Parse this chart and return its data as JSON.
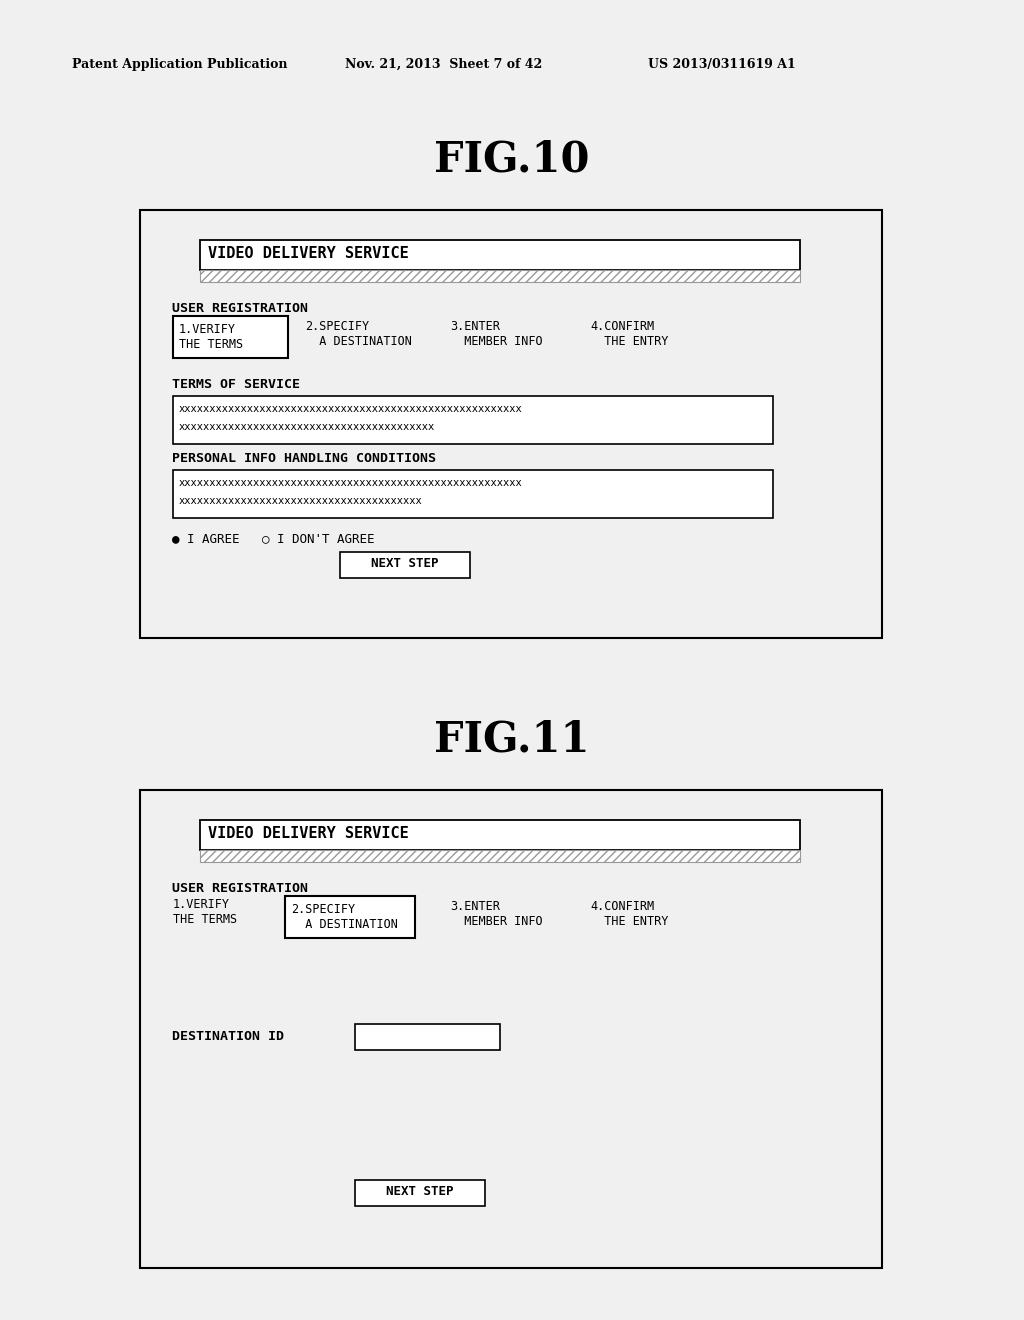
{
  "header_left": "Patent Application Publication",
  "header_mid": "Nov. 21, 2013  Sheet 7 of 42",
  "header_right": "US 2013/0311619 A1",
  "fig10_title": "FIG.10",
  "fig11_title": "FIG.11",
  "service_title": "VIDEO DELIVERY SERVICE",
  "user_reg": "USER REGISTRATION",
  "step1_line1": "1.VERIFY",
  "step1_line2": "THE TERMS",
  "step2_line1": "2.SPECIFY",
  "step2_line2": "  A DESTINATION",
  "step3_line1": "3.ENTER",
  "step3_line2": "  MEMBER INFO",
  "step4_line1": "4.CONFIRM",
  "step4_line2": "  THE ENTRY",
  "terms_label": "TERMS OF SERVICE",
  "terms_text1": "xxxxxxxxxxxxxxxxxxxxxxxxxxxxxxxxxxxxxxxxxxxxxxxxxxxxxxx",
  "terms_text2": "xxxxxxxxxxxxxxxxxxxxxxxxxxxxxxxxxxxxxxxxx",
  "personal_label": "PERSONAL INFO HANDLING CONDITIONS",
  "personal_text1": "xxxxxxxxxxxxxxxxxxxxxxxxxxxxxxxxxxxxxxxxxxxxxxxxxxxxxxx",
  "personal_text2": "xxxxxxxxxxxxxxxxxxxxxxxxxxxxxxxxxxxxxxx",
  "agree_text": "● I AGREE   ○ I DON'T AGREE",
  "next_step": "NEXT STEP",
  "dest_id_label": "DESTINATION ID",
  "bg_color": "#f0f0f0",
  "white": "#ffffff",
  "black": "#000000",
  "gray_hatch": "#999999"
}
